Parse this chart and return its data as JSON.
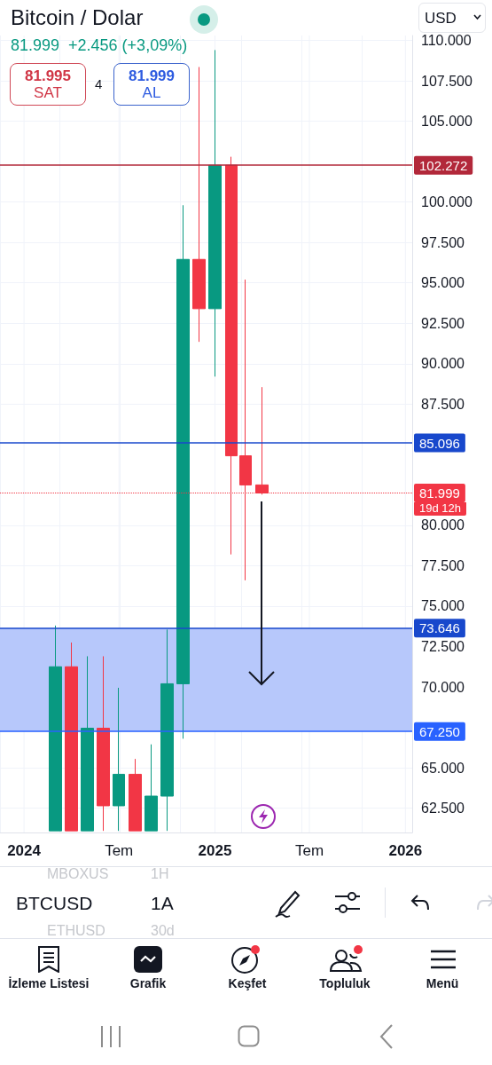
{
  "chart_data": {
    "type": "candlestick",
    "title": "Bitcoin / Dolar",
    "subtitle": "81.999  +2.456 (+3,09%)",
    "x": [
      "2024-03",
      "2024-04",
      "2024-05",
      "2024-06",
      "2024-07",
      "2024-08",
      "2024-09",
      "2024-10",
      "2024-11",
      "2024-12",
      "2025-01",
      "2025-02",
      "2025-03",
      "2025-04"
    ],
    "ohlc": [
      [
        61100,
        73800,
        61100,
        71250
      ],
      [
        71250,
        72750,
        61100,
        61100
      ],
      [
        61100,
        71900,
        61100,
        67450
      ],
      [
        67450,
        71900,
        61100,
        62650
      ],
      [
        62650,
        69950,
        61100,
        64600
      ],
      [
        64600,
        65550,
        61100,
        61100
      ],
      [
        61100,
        66450,
        61100,
        63250
      ],
      [
        63250,
        73550,
        61100,
        70200
      ],
      [
        70200,
        99800,
        66800,
        96450
      ],
      [
        96450,
        108350,
        91350,
        93400
      ],
      [
        93400,
        109400,
        89200,
        102270
      ],
      [
        102270,
        102800,
        78200,
        84300
      ],
      [
        84300,
        95200,
        76600,
        82500
      ],
      [
        82500,
        88550,
        81900,
        81999
      ]
    ],
    "colors": [
      "#089981",
      "#f23645",
      "#089981",
      "#f23645",
      "#089981",
      "#f23645",
      "#089981",
      "#089981",
      "#089981",
      "#f23645",
      "#089981",
      "#f23645",
      "#f23645",
      "#f23645"
    ],
    "xlim": [
      "2023-11-16",
      "2026-01-14"
    ],
    "xticks": [
      {
        "value": "2024-01",
        "label": "2024"
      },
      {
        "value": "2024-07",
        "label": "Tem"
      },
      {
        "value": "2025-01",
        "label": "2025"
      },
      {
        "value": "2025-07",
        "label": "Tem"
      },
      {
        "value": "2026-01",
        "label": "2026"
      }
    ],
    "ylim": [
      61000,
      110300
    ],
    "yticks": [
      {
        "value": 62500,
        "label": "62.500"
      },
      {
        "value": 65000,
        "label": "65.000"
      },
      {
        "value": 70000,
        "label": "70.000"
      },
      {
        "value": 72500,
        "label": "72.500"
      },
      {
        "value": 75000,
        "label": "75.000"
      },
      {
        "value": 77500,
        "label": "77.500"
      },
      {
        "value": 80000,
        "label": "80.000"
      },
      {
        "value": 87500,
        "label": "87.500"
      },
      {
        "value": 90000,
        "label": "90.000"
      },
      {
        "value": 92500,
        "label": "92.500"
      },
      {
        "value": 95000,
        "label": "95.000"
      },
      {
        "value": 97500,
        "label": "97.500"
      },
      {
        "value": 100000,
        "label": "100.000"
      },
      {
        "value": 105000,
        "label": "105.000"
      },
      {
        "value": 107500,
        "label": "107.500"
      },
      {
        "value": 110000,
        "label": "110.000"
      }
    ],
    "grid": true,
    "ref_lines": [
      {
        "axis": "y",
        "value": 102272,
        "label": "102.272",
        "color": "#b2283a",
        "line_style": "solid"
      },
      {
        "axis": "y",
        "value": 85096,
        "label": "85.096",
        "color": "#1848cc",
        "line_style": "solid"
      },
      {
        "axis": "y",
        "value": 81999,
        "label": "81.999",
        "color": "#f23645",
        "line_style": "dotted"
      },
      {
        "axis": "y",
        "value": 73646,
        "label": "73.646",
        "color": "#1848cc",
        "line_style": "solid"
      },
      {
        "axis": "y",
        "value": 67250,
        "label": "67.250",
        "color": "#2962ff",
        "line_style": "solid"
      }
    ],
    "bands": [
      {
        "axis": "y",
        "from": 67250,
        "to": 73646,
        "color": "#b3c5fb"
      }
    ],
    "annotations": [
      "81.995",
      "SAT",
      "4",
      "81.999",
      "AL",
      "USD",
      "19d 12h",
      "MBOXUS",
      "1H",
      "BTCUSD",
      "1A",
      "ETHUSD",
      "30d",
      "İzleme Listesi",
      "Grafik",
      "Keşfet",
      "Topluluk",
      "Menü"
    ]
  }
}
